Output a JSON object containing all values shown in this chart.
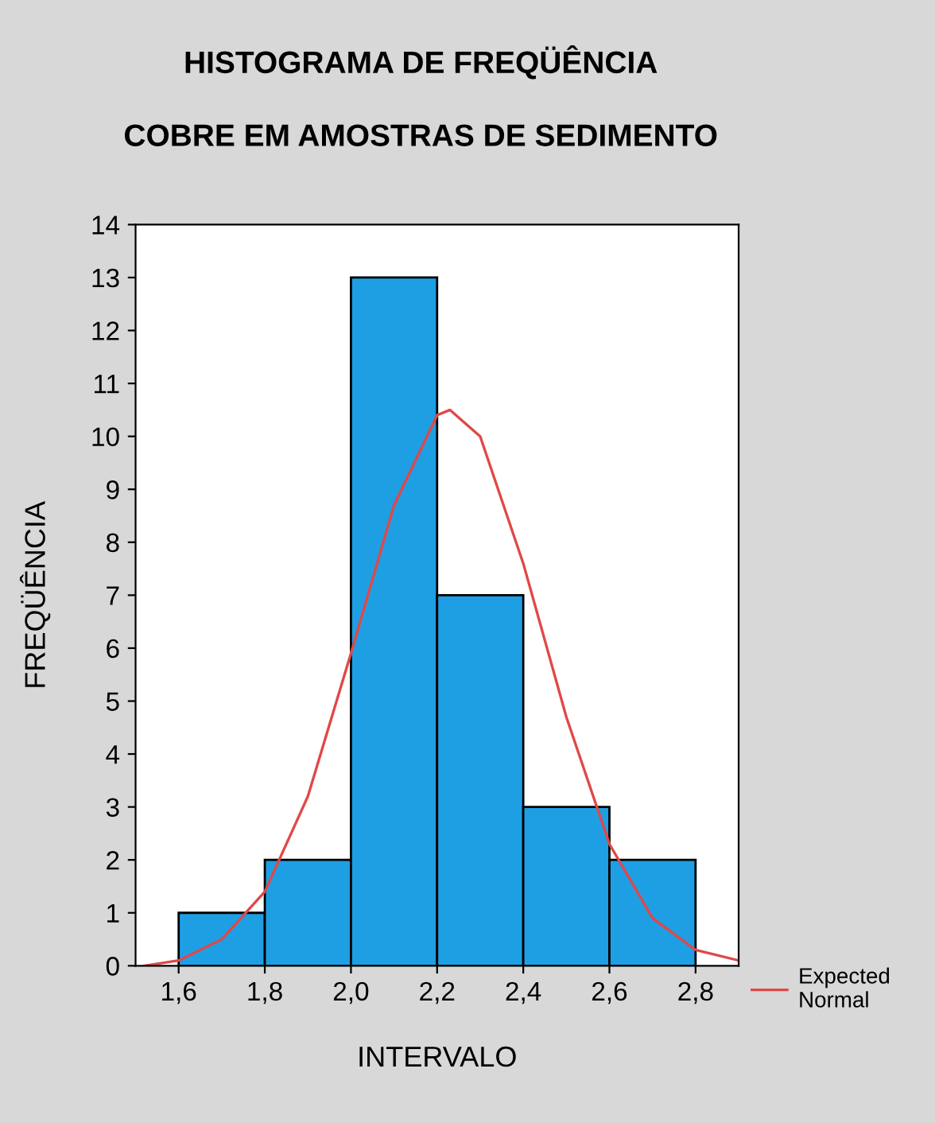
{
  "chart_data": {
    "type": "histogram",
    "title": "HISTOGRAMA DE FREQÜÊNCIA",
    "subtitle": "COBRE EM AMOSTRAS DE SEDIMENTO",
    "xlabel": "INTERVALO",
    "ylabel": "FREQÜÊNCIA",
    "bins": [
      1.6,
      1.8,
      2.0,
      2.2,
      2.4,
      2.6,
      2.8
    ],
    "values": [
      1,
      2,
      13,
      7,
      3,
      2
    ],
    "color": "#1e9fe3",
    "series": [
      {
        "type": "line",
        "name": "Expected\nNormal",
        "color": "#e04848",
        "x": [
          1.52,
          1.6,
          1.7,
          1.8,
          1.9,
          2.0,
          2.1,
          2.2,
          2.23,
          2.3,
          2.4,
          2.5,
          2.6,
          2.7,
          2.8,
          2.9
        ],
        "values": [
          0.0,
          0.1,
          0.5,
          1.4,
          3.2,
          5.9,
          8.7,
          10.4,
          10.5,
          10.0,
          7.6,
          4.7,
          2.3,
          0.9,
          0.3,
          0.1
        ]
      }
    ],
    "xlim": [
      1.5,
      2.9
    ],
    "xticks": [
      {
        "value": 1.6,
        "label": "1,6"
      },
      {
        "value": 1.8,
        "label": "1,8"
      },
      {
        "value": 2.0,
        "label": "2,0"
      },
      {
        "value": 2.2,
        "label": "2,2"
      },
      {
        "value": 2.4,
        "label": "2,4"
      },
      {
        "value": 2.6,
        "label": "2,6"
      },
      {
        "value": 2.8,
        "label": "2,8"
      }
    ],
    "ylim": [
      0,
      14
    ],
    "yticks": [
      0,
      1,
      2,
      3,
      4,
      5,
      6,
      7,
      8,
      9,
      10,
      11,
      12,
      13,
      14
    ],
    "grid": false,
    "legend": "right",
    "marker": "none",
    "line_style": "solid"
  }
}
